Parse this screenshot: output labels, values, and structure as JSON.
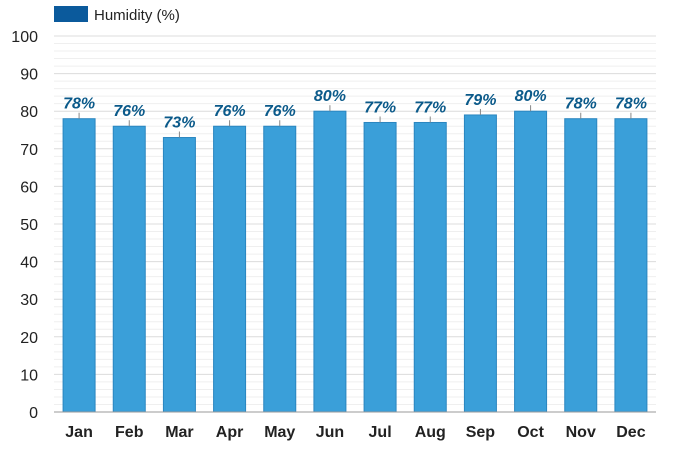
{
  "chart_data": {
    "type": "bar",
    "categories": [
      "Jan",
      "Feb",
      "Mar",
      "Apr",
      "May",
      "Jun",
      "Jul",
      "Aug",
      "Sep",
      "Oct",
      "Nov",
      "Dec"
    ],
    "series": [
      {
        "name": "Humidity (%)",
        "values": [
          78,
          76,
          73,
          76,
          76,
          80,
          77,
          77,
          79,
          80,
          78,
          78
        ]
      }
    ],
    "data_labels": [
      "78%",
      "76%",
      "73%",
      "76%",
      "76%",
      "80%",
      "77%",
      "77%",
      "79%",
      "80%",
      "78%",
      "78%"
    ],
    "y_ticks": [
      "0",
      "10",
      "20",
      "30",
      "40",
      "50",
      "60",
      "70",
      "80",
      "90",
      "100"
    ],
    "ylim": [
      0,
      100
    ],
    "grid": true,
    "legend_position": "top-left",
    "colors": {
      "bar": "#3a9fd9",
      "bar_stroke": "#2a86c0",
      "legend_swatch": "#0b5a9c",
      "data_label": "#0b5a8a",
      "grid": "#e6e6e6",
      "axis": "#9a9a9a"
    }
  }
}
